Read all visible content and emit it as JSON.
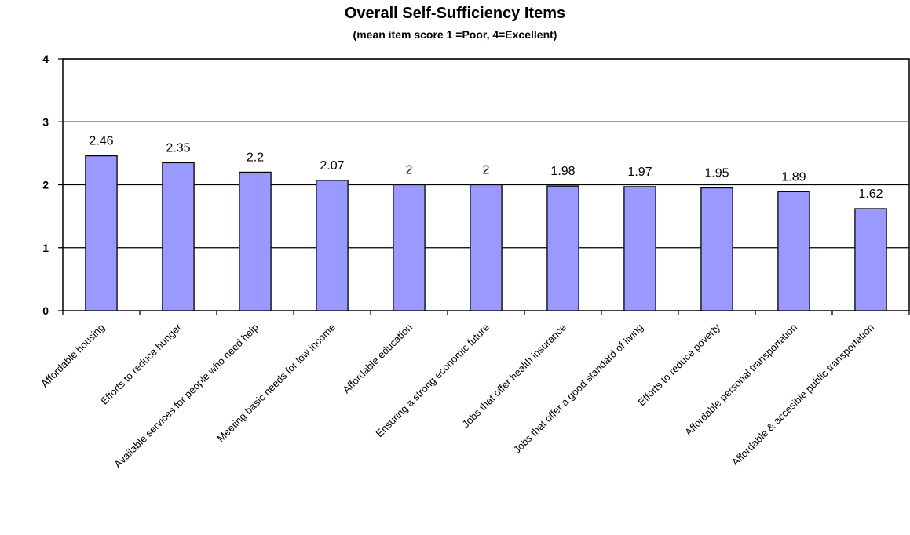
{
  "chart_data": {
    "type": "bar",
    "title": "Overall Self-Sufficiency Items",
    "subtitle": "(mean item score 1 =Poor, 4=Excellent)",
    "xlabel": "",
    "ylabel": "",
    "ylim": [
      0,
      4
    ],
    "yticks": [
      0,
      1,
      2,
      3,
      4
    ],
    "grid": true,
    "legend": "none",
    "bar_color": "#9999ff",
    "categories": [
      "Affordable housing",
      "Efforts to reduce hunger",
      "Available services for people who need help",
      "Meeting basic needs for low income",
      "Affordable education",
      "Ensuring a strong economic future",
      "Jobs that offer health insurance",
      "Jobs that offer a good standard of living",
      "Efforts to reduce poverty",
      "Affordable personal transportation",
      "Affordable & accesible public transportation"
    ],
    "values": [
      2.46,
      2.35,
      2.2,
      2.07,
      2,
      2,
      1.98,
      1.97,
      1.95,
      1.89,
      1.62
    ],
    "data_labels": [
      "2.46",
      "2.35",
      "2.2",
      "2.07",
      "2",
      "2",
      "1.98",
      "1.97",
      "1.95",
      "1.89",
      "1.62"
    ]
  }
}
